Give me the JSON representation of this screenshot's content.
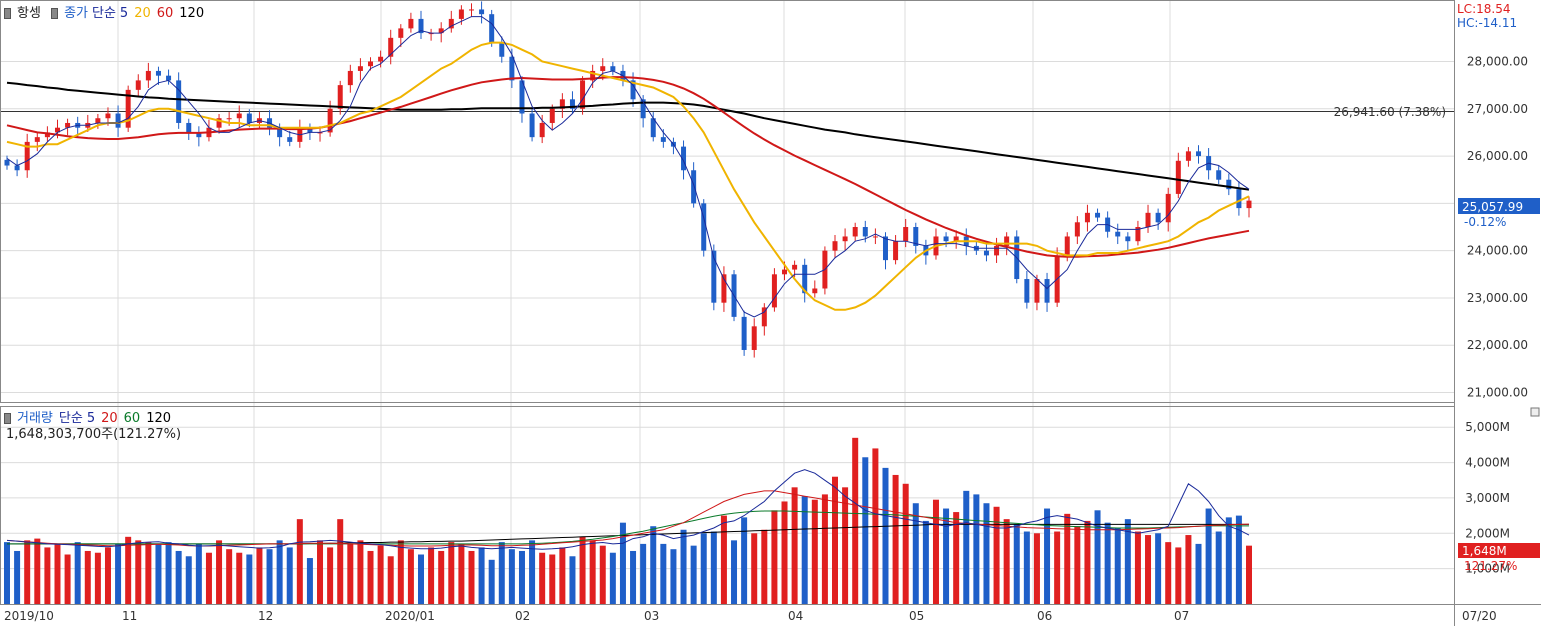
{
  "legend_price": {
    "name": "항셍",
    "type": "종가",
    "ma_label": "단순",
    "ma5": "5",
    "ma20": "20",
    "ma60": "60",
    "ma120": "120"
  },
  "legend_volume": {
    "name": "거래량",
    "ma_label": "단순",
    "ma5": "5",
    "ma20": "20",
    "ma60": "60",
    "ma120": "120",
    "last": "1,648,303,700주(121.27%)"
  },
  "corner": {
    "lc": "LC:18.54",
    "hc": "HC:-14.11"
  },
  "price_tag": {
    "value": "25,057.99",
    "change": "-0.12%"
  },
  "hline_label": "26,941.60 (7.38%)",
  "volume_tag": {
    "value": "1,648M",
    "pct": "121.27%"
  },
  "date_labels": [
    "2019/10",
    "11",
    "12",
    "2020/01",
    "02",
    "03",
    "04",
    "05",
    "06",
    "07",
    "07/20"
  ],
  "colors": {
    "up": "#e02020",
    "down": "#1f5fc8",
    "ma5": "#1a2a9a",
    "ma20": "#f0b400",
    "ma60": "#d01818",
    "ma120": "#000000"
  },
  "chart_data": [
    {
      "type": "candlestick",
      "title": "항셍",
      "ylim": [
        20800,
        29300
      ],
      "yticks": [
        "21,000.00",
        "22,000.00",
        "23,000.00",
        "24,000.00",
        "25,000.00",
        "26,000.00",
        "27,000.00",
        "28,000.00"
      ],
      "hline": 26941.6,
      "close": [
        25800,
        25700,
        26300,
        26400,
        26500,
        26600,
        26700,
        26600,
        26700,
        26800,
        26900,
        26600,
        27400,
        27600,
        27800,
        27700,
        27600,
        26700,
        26500,
        26400,
        26600,
        26800,
        26800,
        26900,
        26700,
        26800,
        26600,
        26400,
        26300,
        26600,
        26500,
        26500,
        27000,
        27500,
        27800,
        27900,
        28000,
        28100,
        28500,
        28700,
        28900,
        28600,
        28600,
        28700,
        28900,
        29100,
        29100,
        29000,
        28400,
        28100,
        27600,
        26900,
        26400,
        26700,
        27000,
        27200,
        27000,
        27600,
        27800,
        27900,
        27800,
        27600,
        27200,
        26800,
        26400,
        26300,
        26200,
        25700,
        25000,
        24000,
        22900,
        23500,
        22600,
        21900,
        22400,
        22800,
        23500,
        23600,
        23700,
        23100,
        23200,
        24000,
        24200,
        24300,
        24500,
        24300,
        24300,
        23800,
        24200,
        24500,
        24100,
        23900,
        24300,
        24200,
        24300,
        24100,
        24000,
        23900,
        24100,
        24300,
        23400,
        22900,
        23400,
        22900,
        23900,
        24300,
        24600,
        24800,
        24700,
        24400,
        24300,
        24200,
        24500,
        24800,
        24600,
        25200,
        25900,
        26100,
        26000,
        25700,
        25500,
        25300,
        24900,
        25058
      ],
      "ma5": [
        25950,
        25800,
        25900,
        26050,
        26300,
        26500,
        26600,
        26650,
        26650,
        26700,
        26700,
        26700,
        26800,
        27050,
        27400,
        27550,
        27600,
        27400,
        27150,
        26900,
        26600,
        26500,
        26500,
        26600,
        26700,
        26750,
        26700,
        26600,
        26500,
        26450,
        26500,
        26500,
        26550,
        26750,
        27050,
        27550,
        27850,
        27950,
        28150,
        28350,
        28550,
        28650,
        28600,
        28600,
        28750,
        28850,
        28950,
        28950,
        28800,
        28500,
        28150,
        27600,
        27050,
        26750,
        26550,
        26700,
        26900,
        27200,
        27550,
        27750,
        27800,
        27700,
        27500,
        27150,
        26800,
        26500,
        26250,
        25900,
        25400,
        24700,
        23850,
        23400,
        23050,
        22700,
        22600,
        22700,
        23000,
        23300,
        23500,
        23500,
        23500,
        23600,
        23850,
        24000,
        24200,
        24250,
        24350,
        24250,
        24200,
        24200,
        24150,
        24100,
        24150,
        24150,
        24150,
        24100,
        24050,
        24050,
        24050,
        24050,
        23850,
        23600,
        23400,
        23200,
        23400,
        23600,
        24000,
        24350,
        24550,
        24550,
        24450,
        24450,
        24450,
        24500,
        24550,
        24750,
        25050,
        25450,
        25750,
        25850,
        25800,
        25650,
        25450,
        25300
      ],
      "ma20": [
        26300,
        26250,
        26200,
        26200,
        26250,
        26250,
        26350,
        26450,
        26550,
        26650,
        26700,
        26700,
        26750,
        26850,
        26950,
        27000,
        27000,
        26950,
        26900,
        26850,
        26800,
        26750,
        26700,
        26700,
        26650,
        26650,
        26650,
        26600,
        26600,
        26600,
        26600,
        26600,
        26650,
        26700,
        26800,
        26900,
        26950,
        27050,
        27150,
        27250,
        27400,
        27550,
        27700,
        27850,
        27950,
        28100,
        28250,
        28350,
        28400,
        28400,
        28350,
        28250,
        28150,
        28000,
        27950,
        27900,
        27850,
        27800,
        27750,
        27700,
        27650,
        27600,
        27550,
        27500,
        27450,
        27350,
        27250,
        27050,
        26800,
        26500,
        26100,
        25700,
        25300,
        24950,
        24600,
        24300,
        24000,
        23700,
        23400,
        23150,
        22950,
        22850,
        22750,
        22750,
        22800,
        22900,
        23050,
        23250,
        23450,
        23650,
        23850,
        24000,
        24100,
        24150,
        24200,
        24200,
        24200,
        24150,
        24150,
        24150,
        24150,
        24150,
        24100,
        24000,
        23950,
        23900,
        23900,
        23900,
        23950,
        23950,
        23950,
        24000,
        24050,
        24100,
        24150,
        24200,
        24300,
        24450,
        24600,
        24700,
        24850,
        24950,
        25050,
        25150
      ],
      "ma60": [
        26650,
        26600,
        26550,
        26500,
        26480,
        26450,
        26420,
        26400,
        26380,
        26370,
        26360,
        26360,
        26380,
        26400,
        26430,
        26460,
        26480,
        26490,
        26490,
        26490,
        26500,
        26520,
        26540,
        26560,
        26570,
        26580,
        26580,
        26580,
        26570,
        26570,
        26580,
        26600,
        26640,
        26690,
        26740,
        26800,
        26860,
        26920,
        26980,
        27040,
        27110,
        27180,
        27250,
        27320,
        27390,
        27450,
        27510,
        27560,
        27590,
        27620,
        27640,
        27650,
        27640,
        27630,
        27620,
        27620,
        27620,
        27630,
        27640,
        27660,
        27670,
        27670,
        27660,
        27640,
        27610,
        27570,
        27510,
        27430,
        27330,
        27210,
        27070,
        26920,
        26770,
        26620,
        26480,
        26350,
        26230,
        26120,
        26010,
        25910,
        25810,
        25710,
        25610,
        25510,
        25410,
        25300,
        25190,
        25080,
        24970,
        24860,
        24760,
        24660,
        24570,
        24480,
        24400,
        24320,
        24250,
        24190,
        24130,
        24080,
        24030,
        23980,
        23940,
        23900,
        23880,
        23870,
        23870,
        23880,
        23890,
        23900,
        23920,
        23940,
        23960,
        23990,
        24020,
        24060,
        24110,
        24160,
        24210,
        24260,
        24300,
        24340,
        24380,
        24420
      ],
      "ma120": [
        27550,
        27530,
        27500,
        27480,
        27450,
        27430,
        27400,
        27380,
        27360,
        27340,
        27320,
        27300,
        27280,
        27260,
        27240,
        27230,
        27210,
        27200,
        27190,
        27180,
        27170,
        27160,
        27150,
        27140,
        27130,
        27120,
        27110,
        27100,
        27090,
        27080,
        27070,
        27060,
        27050,
        27040,
        27030,
        27020,
        27010,
        27000,
        26990,
        26980,
        26980,
        26980,
        26980,
        26980,
        26990,
        26990,
        27000,
        27010,
        27010,
        27010,
        27010,
        27010,
        27010,
        27020,
        27020,
        27030,
        27040,
        27050,
        27060,
        27080,
        27090,
        27110,
        27120,
        27130,
        27130,
        27130,
        27120,
        27110,
        27090,
        27060,
        27020,
        26980,
        26940,
        26900,
        26850,
        26800,
        26760,
        26720,
        26680,
        26640,
        26600,
        26560,
        26530,
        26500,
        26460,
        26430,
        26400,
        26370,
        26340,
        26310,
        26280,
        26250,
        26220,
        26190,
        26160,
        26130,
        26100,
        26070,
        26040,
        26010,
        25980,
        25950,
        25920,
        25890,
        25860,
        25830,
        25800,
        25770,
        25740,
        25710,
        25680,
        25650,
        25620,
        25590,
        25560,
        25530,
        25500,
        25470,
        25440,
        25410,
        25380,
        25350,
        25320,
        25290
      ]
    },
    {
      "type": "bar",
      "title": "거래량",
      "ylim": [
        0,
        5600
      ],
      "unit": "M",
      "yticks": [
        "1,000M",
        "2,000M",
        "3,000M",
        "4,000M",
        "5,000M"
      ],
      "values": [
        1750,
        1500,
        1800,
        1850,
        1600,
        1700,
        1400,
        1750,
        1500,
        1450,
        1600,
        1700,
        1900,
        1800,
        1750,
        1700,
        1750,
        1500,
        1350,
        1700,
        1450,
        1800,
        1550,
        1450,
        1400,
        1600,
        1550,
        1800,
        1600,
        2400,
        1300,
        1800,
        1600,
        2400,
        1700,
        1800,
        1500,
        1650,
        1350,
        1800,
        1550,
        1400,
        1600,
        1500,
        1750,
        1700,
        1500,
        1600,
        1250,
        1750,
        1550,
        1500,
        1800,
        1450,
        1400,
        1600,
        1350,
        1900,
        1800,
        1650,
        1450,
        2300,
        1500,
        1700,
        2200,
        1700,
        1550,
        2100,
        1650,
        2000,
        2050,
        2500,
        1800,
        2450,
        2000,
        2100,
        2650,
        2900,
        3300,
        3050,
        2950,
        3100,
        3600,
        3300,
        4700,
        4150,
        4400,
        3850,
        3650,
        3400,
        2850,
        2350,
        2950,
        2700,
        2600,
        3200,
        3100,
        2850,
        2750,
        2400,
        2250,
        2050,
        2000,
        2700,
        2050,
        2550,
        2200,
        2350,
        2650,
        2300,
        2150,
        2400,
        2050,
        1950,
        2000,
        1750,
        1600,
        1950,
        1700,
        2700,
        2050,
        2450,
        2500,
        1650
      ],
      "ma5": [
        1800,
        1780,
        1750,
        1730,
        1700,
        1690,
        1680,
        1660,
        1650,
        1630,
        1620,
        1650,
        1700,
        1730,
        1750,
        1760,
        1720,
        1700,
        1660,
        1640,
        1650,
        1660,
        1640,
        1620,
        1600,
        1580,
        1590,
        1620,
        1700,
        1750,
        1760,
        1780,
        1800,
        1780,
        1750,
        1720,
        1700,
        1680,
        1650,
        1600,
        1580,
        1560,
        1560,
        1580,
        1620,
        1640,
        1600,
        1580,
        1560,
        1580,
        1600,
        1580,
        1560,
        1550,
        1560,
        1580,
        1620,
        1680,
        1720,
        1740,
        1700,
        1720,
        1850,
        1900,
        2000,
        1950,
        1850,
        1900,
        1950,
        2050,
        2150,
        2300,
        2350,
        2500,
        2700,
        2900,
        3200,
        3450,
        3700,
        3800,
        3700,
        3500,
        3300,
        3050,
        2850,
        2650,
        2550,
        2500,
        2450,
        2400,
        2350,
        2300,
        2250,
        2200,
        2250,
        2300,
        2250,
        2200,
        2150,
        2150,
        2200,
        2300,
        2350,
        2450,
        2500,
        2450,
        2400,
        2300,
        2200,
        2150,
        2100,
        2050,
        2000,
        2050,
        2100,
        2200,
        2800,
        3400,
        3200,
        2900,
        2500,
        2200,
        2100,
        1950
      ],
      "ma20": [
        1800,
        1780,
        1760,
        1740,
        1720,
        1700,
        1690,
        1680,
        1670,
        1660,
        1650,
        1650,
        1660,
        1670,
        1680,
        1690,
        1680,
        1670,
        1650,
        1640,
        1640,
        1650,
        1660,
        1670,
        1680,
        1690,
        1700,
        1700,
        1700,
        1710,
        1720,
        1720,
        1720,
        1710,
        1700,
        1690,
        1680,
        1670,
        1660,
        1650,
        1640,
        1640,
        1640,
        1650,
        1660,
        1670,
        1670,
        1660,
        1650,
        1650,
        1650,
        1660,
        1670,
        1690,
        1710,
        1730,
        1750,
        1770,
        1790,
        1810,
        1850,
        1900,
        1950,
        2000,
        2050,
        2100,
        2200,
        2300,
        2450,
        2600,
        2750,
        2900,
        3000,
        3100,
        3150,
        3200,
        3200,
        3150,
        3100,
        3050,
        3000,
        2950,
        2900,
        2850,
        2800,
        2750,
        2700,
        2650,
        2600,
        2550,
        2500,
        2450,
        2400,
        2350,
        2300,
        2280,
        2260,
        2240,
        2220,
        2200,
        2180,
        2160,
        2150,
        2140,
        2130,
        2120,
        2110,
        2100,
        2100,
        2100,
        2100,
        2110,
        2120,
        2130,
        2140,
        2150,
        2160,
        2180,
        2200,
        2220,
        2230,
        2240,
        2250,
        2260
      ],
      "ma60": [
        1700,
        1700,
        1700,
        1700,
        1700,
        1700,
        1700,
        1700,
        1700,
        1700,
        1700,
        1700,
        1700,
        1700,
        1700,
        1700,
        1700,
        1700,
        1700,
        1700,
        1700,
        1700,
        1700,
        1700,
        1700,
        1700,
        1700,
        1700,
        1700,
        1700,
        1700,
        1700,
        1700,
        1700,
        1700,
        1700,
        1700,
        1700,
        1700,
        1700,
        1700,
        1700,
        1700,
        1700,
        1700,
        1700,
        1700,
        1700,
        1700,
        1700,
        1700,
        1700,
        1710,
        1720,
        1730,
        1750,
        1770,
        1800,
        1830,
        1870,
        1910,
        1960,
        2010,
        2060,
        2120,
        2180,
        2240,
        2300,
        2360,
        2420,
        2480,
        2530,
        2570,
        2600,
        2620,
        2630,
        2630,
        2630,
        2620,
        2610,
        2600,
        2590,
        2580,
        2570,
        2560,
        2550,
        2540,
        2530,
        2520,
        2500,
        2480,
        2460,
        2440,
        2420,
        2400,
        2380,
        2360,
        2340,
        2320,
        2300,
        2280,
        2260,
        2240,
        2220,
        2210,
        2200,
        2190,
        2180,
        2170,
        2160,
        2150,
        2150,
        2150,
        2150,
        2160,
        2170,
        2180,
        2190,
        2200,
        2210,
        2210,
        2210,
        2210,
        2210
      ],
      "ma120": [
        1700,
        1700,
        1700,
        1700,
        1700,
        1700,
        1700,
        1700,
        1700,
        1700,
        1700,
        1700,
        1700,
        1700,
        1700,
        1700,
        1700,
        1700,
        1700,
        1700,
        1700,
        1700,
        1700,
        1700,
        1700,
        1700,
        1700,
        1700,
        1700,
        1700,
        1710,
        1710,
        1720,
        1720,
        1730,
        1730,
        1740,
        1740,
        1750,
        1750,
        1760,
        1760,
        1770,
        1770,
        1780,
        1780,
        1790,
        1800,
        1810,
        1820,
        1830,
        1840,
        1850,
        1860,
        1870,
        1880,
        1890,
        1900,
        1910,
        1920,
        1930,
        1940,
        1950,
        1960,
        1970,
        1980,
        1990,
        2000,
        2010,
        2020,
        2030,
        2040,
        2050,
        2060,
        2070,
        2080,
        2090,
        2100,
        2110,
        2120,
        2130,
        2140,
        2150,
        2160,
        2170,
        2180,
        2190,
        2200,
        2210,
        2220,
        2230,
        2240,
        2250,
        2250,
        2250,
        2250,
        2250,
        2250,
        2250,
        2250,
        2250,
        2250,
        2250,
        2250,
        2250,
        2250,
        2250,
        2250,
        2250,
        2250,
        2250,
        2250,
        2250,
        2250,
        2250,
        2250,
        2250,
        2250,
        2250,
        2250,
        2250,
        2250,
        2250,
        2250
      ]
    }
  ]
}
